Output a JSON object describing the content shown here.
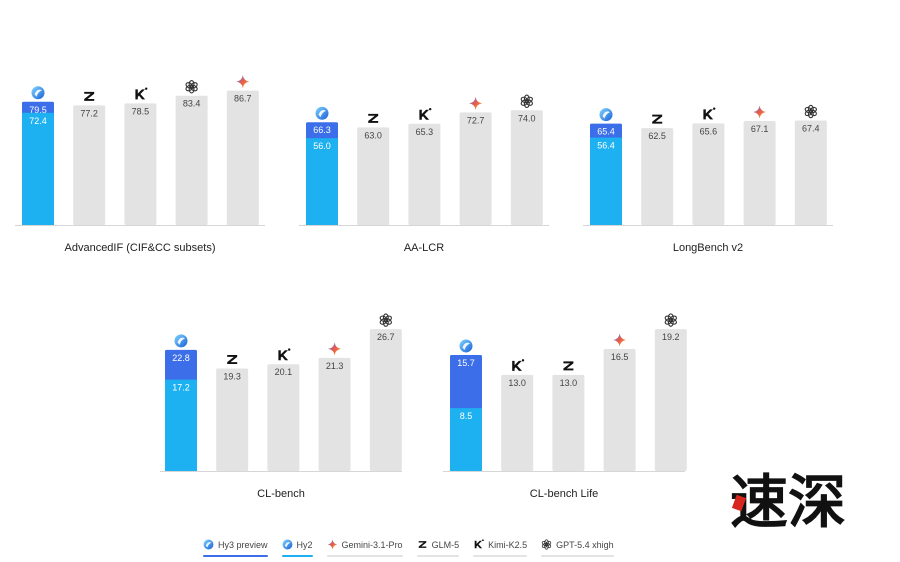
{
  "chart_data": [
    {
      "type": "bar",
      "title": "AdvancedIF (CIF&CC subsets)",
      "ylim": [
        0,
        100
      ],
      "bars": [
        {
          "model": "Hy3 preview",
          "icon": "hy-icon",
          "value": 79.5,
          "inner_model": "Hy2",
          "inner_value": 72.4
        },
        {
          "model": "GLM-5",
          "icon": "z-icon",
          "value": 77.2
        },
        {
          "model": "Kimi-K2.5",
          "icon": "k-icon",
          "value": 78.5
        },
        {
          "model": "GPT-5.4 xhigh",
          "icon": "openai-icon",
          "value": 83.4
        },
        {
          "model": "Gemini-3.1-Pro",
          "icon": "gemini-icon",
          "value": 86.7
        }
      ]
    },
    {
      "type": "bar",
      "title": "AA-LCR",
      "ylim": [
        0,
        100
      ],
      "bars": [
        {
          "model": "Hy3 preview",
          "icon": "hy-icon",
          "value": 66.3,
          "inner_model": "Hy2",
          "inner_value": 56.0
        },
        {
          "model": "GLM-5",
          "icon": "z-icon",
          "value": 63.0
        },
        {
          "model": "Kimi-K2.5",
          "icon": "k-icon",
          "value": 65.3
        },
        {
          "model": "Gemini-3.1-Pro",
          "icon": "gemini-icon",
          "value": 72.7
        },
        {
          "model": "GPT-5.4 xhigh",
          "icon": "openai-icon",
          "value": 74.0
        }
      ]
    },
    {
      "type": "bar",
      "title": "LongBench v2",
      "ylim": [
        0,
        100
      ],
      "bars": [
        {
          "model": "Hy3 preview",
          "icon": "hy-icon",
          "value": 65.4,
          "inner_model": "Hy2",
          "inner_value": 56.4
        },
        {
          "model": "GLM-5",
          "icon": "z-icon",
          "value": 62.5
        },
        {
          "model": "Kimi-K2.5",
          "icon": "k-icon",
          "value": 65.6
        },
        {
          "model": "Gemini-3.1-Pro",
          "icon": "gemini-icon",
          "value": 67.1
        },
        {
          "model": "GPT-5.4 xhigh",
          "icon": "openai-icon",
          "value": 67.4
        }
      ]
    },
    {
      "type": "bar",
      "title": "CL-bench",
      "ylim": [
        0,
        32
      ],
      "bars": [
        {
          "model": "Hy3 preview",
          "icon": "hy-icon",
          "value": 22.8,
          "inner_model": "Hy2",
          "inner_value": 17.2
        },
        {
          "model": "GLM-5",
          "icon": "z-icon",
          "value": 19.3
        },
        {
          "model": "Kimi-K2.5",
          "icon": "k-icon",
          "value": 20.1
        },
        {
          "model": "Gemini-3.1-Pro",
          "icon": "gemini-icon",
          "value": 21.3
        },
        {
          "model": "GPT-5.4 xhigh",
          "icon": "openai-icon",
          "value": 26.7
        }
      ]
    },
    {
      "type": "bar",
      "title": "CL-bench Life",
      "ylim": [
        0,
        23
      ],
      "bars": [
        {
          "model": "Hy3 preview",
          "icon": "hy-icon",
          "value": 15.7,
          "inner_model": "Hy2",
          "inner_value": 8.5
        },
        {
          "model": "Kimi-K2.5",
          "icon": "k-icon",
          "value": 13.0
        },
        {
          "model": "GLM-5",
          "icon": "z-icon",
          "value": 13.0
        },
        {
          "model": "Gemini-3.1-Pro",
          "icon": "gemini-icon",
          "value": 16.5
        },
        {
          "model": "GPT-5.4 xhigh",
          "icon": "openai-icon",
          "value": 19.2
        }
      ]
    }
  ],
  "legend": [
    {
      "label": "Hy3 preview",
      "icon": "hy-icon",
      "color": "#3b6ee8"
    },
    {
      "label": "Hy2",
      "icon": "hy-icon",
      "color": "#1eb1f2"
    },
    {
      "label": "Gemini-3.1-Pro",
      "icon": "gemini-icon",
      "color": "#e3e3e3"
    },
    {
      "label": "GLM-5",
      "icon": "z-icon",
      "color": "#e3e3e3"
    },
    {
      "label": "Kimi-K2.5",
      "icon": "k-icon",
      "color": "#e3e3e3"
    },
    {
      "label": "GPT-5.4 xhigh",
      "icon": "openai-icon",
      "color": "#e3e3e3"
    }
  ],
  "colors": {
    "hy3": "#3b6ee8",
    "hy2": "#1eb1f2",
    "other": "#e3e3e3",
    "axis": "#d6d6d6",
    "text": "#222222",
    "value_text_light": "#ffffff",
    "value_text_dark": "#444444"
  },
  "watermark": {
    "text": "速深"
  }
}
